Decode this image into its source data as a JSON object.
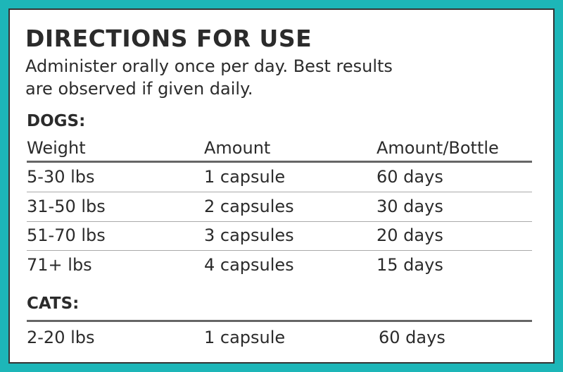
{
  "title": "DIRECTIONS FOR USE",
  "description": [
    "Administer orally once per day. Best results",
    "are observed if given daily."
  ],
  "dogs": {
    "heading": "DOGS:",
    "columns": [
      "Weight",
      "Amount",
      "Amount/Bottle"
    ],
    "rows": [
      [
        "5-30 lbs",
        "1 capsule",
        "60 days"
      ],
      [
        "31-50 lbs",
        "2 capsules",
        "30 days"
      ],
      [
        "51-70 lbs",
        "3 capsules",
        "20 days"
      ],
      [
        "71+ lbs",
        "4 capsules",
        "15 days"
      ]
    ]
  },
  "cats": {
    "heading": "CATS:",
    "rows": [
      [
        "2-20 lbs",
        "1 capsule",
        "60 days"
      ]
    ]
  }
}
